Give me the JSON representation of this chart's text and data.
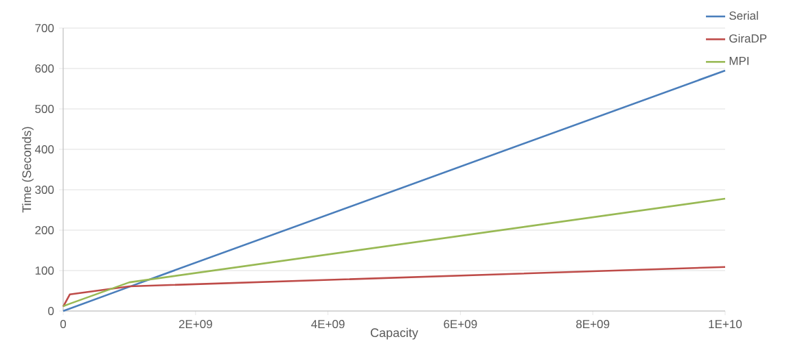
{
  "chart_data": {
    "type": "line",
    "xlabel": "Capacity",
    "ylabel": "Time (Seconds)",
    "xlim": [
      0,
      10000000000
    ],
    "ylim": [
      0,
      700
    ],
    "xticks": [
      0,
      {
        "value": 2000000000,
        "label": "2E+09"
      },
      {
        "value": 4000000000,
        "label": "4E+09"
      },
      {
        "value": 6000000000,
        "label": "6E+09"
      },
      {
        "value": 8000000000,
        "label": "8E+09"
      },
      {
        "value": 10000000000,
        "label": "1E+10"
      }
    ],
    "yticks": [
      0,
      100,
      200,
      300,
      400,
      500,
      600,
      700
    ],
    "grid": "y",
    "legend": "top right",
    "marker": "none",
    "line_style": "solid",
    "series": [
      {
        "name": "Serial",
        "color": "#4a7ebb",
        "x": [
          0,
          100000000,
          1000000000,
          10000000000
        ],
        "values": [
          0,
          6,
          60,
          595
        ]
      },
      {
        "name": "GiraDP",
        "color": "#be4b48",
        "x": [
          0,
          100000000,
          1000000000,
          10000000000
        ],
        "values": [
          11,
          41,
          61,
          109
        ]
      },
      {
        "name": "MPI",
        "color": "#98b954",
        "x": [
          0,
          100000000,
          1000000000,
          10000000000
        ],
        "values": [
          12,
          18,
          71,
          278
        ]
      }
    ]
  }
}
